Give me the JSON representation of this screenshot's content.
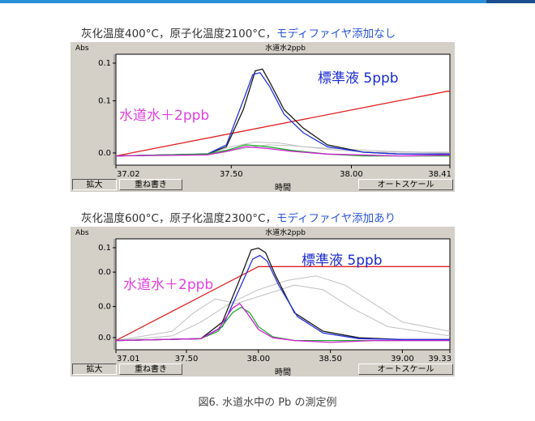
{
  "chart_data": [
    {
      "type": "line",
      "condition_prefix": "灰化温度400°C，原子化温度2100°C，",
      "condition_modifier": "モディファイヤ添加なし",
      "title": "水道水2ppb",
      "ylabel": "Abs",
      "xlabel": "時間",
      "x_ticks": [
        "37.02",
        "37.50",
        "38.00",
        "38.41"
      ],
      "y_ticks": [
        "0.1",
        "0.1",
        "0.0"
      ],
      "x_range": [
        37.02,
        38.41
      ],
      "y_range": [
        -0.01,
        0.11
      ],
      "annotation_standard": "標準液  5ppb",
      "annotation_sample": "水道水＋2ppb",
      "buttons": {
        "zoom": "拡大",
        "overlay": "重ね書き",
        "autoscale": "オートスケール"
      },
      "series": [
        {
          "name": "",
          "color": "#e02020",
          "x": [
            37.02,
            38.4,
            38.41
          ],
          "y": [
            0.0,
            0.07,
            0.07
          ]
        },
        {
          "name": "",
          "color": "#1a1a1a",
          "x": [
            37.02,
            37.4,
            37.48,
            37.55,
            37.6,
            37.63,
            37.66,
            37.72,
            37.8,
            37.9,
            38.05,
            38.2,
            38.41
          ],
          "y": [
            0.0,
            0.002,
            0.01,
            0.05,
            0.092,
            0.094,
            0.08,
            0.05,
            0.03,
            0.012,
            0.004,
            0.002,
            0.002
          ]
        },
        {
          "name": "",
          "color": "#2233dd",
          "x": [
            37.02,
            37.4,
            37.48,
            37.55,
            37.59,
            37.62,
            37.66,
            37.72,
            37.8,
            37.9,
            38.05,
            38.2,
            38.41
          ],
          "y": [
            0.0,
            0.002,
            0.012,
            0.06,
            0.088,
            0.09,
            0.075,
            0.045,
            0.025,
            0.01,
            0.004,
            0.002,
            0.002
          ]
        },
        {
          "name": "",
          "color": "#22aa33",
          "x": [
            37.02,
            37.4,
            37.48,
            37.56,
            37.65,
            37.75,
            37.9,
            38.05,
            38.2,
            38.41
          ],
          "y": [
            0.0,
            0.002,
            0.006,
            0.012,
            0.01,
            0.006,
            0.002,
            0.0,
            0.0,
            0.0
          ]
        },
        {
          "name": "",
          "color": "#d020d0",
          "x": [
            37.02,
            37.4,
            37.48,
            37.56,
            37.65,
            37.75,
            37.9,
            38.05,
            38.2,
            38.41
          ],
          "y": [
            0.0,
            0.001,
            0.005,
            0.01,
            0.008,
            0.005,
            0.002,
            0.001,
            0.0,
            0.001
          ]
        },
        {
          "name": "",
          "color": "#c0c0c0",
          "x": [
            37.02,
            37.4,
            37.5,
            37.6,
            37.7,
            37.8,
            37.95,
            38.1,
            38.25,
            38.41
          ],
          "y": [
            0.0,
            0.002,
            0.01,
            0.015,
            0.014,
            0.01,
            0.006,
            0.004,
            0.004,
            0.003
          ]
        },
        {
          "name": "",
          "color": "#c0c0c0",
          "x": [
            37.02,
            37.45,
            37.55,
            37.65,
            37.75,
            37.85,
            38.0,
            38.15,
            38.3,
            38.41
          ],
          "y": [
            0.0,
            0.003,
            0.008,
            0.012,
            0.011,
            0.009,
            0.007,
            0.005,
            0.004,
            0.004
          ]
        }
      ]
    },
    {
      "type": "line",
      "condition_prefix": "灰化温度600°C，原子化温度2300°C，",
      "condition_modifier": "モディファイヤ添加あり",
      "title": "水道水2ppb",
      "ylabel": "Abs",
      "xlabel": "時間",
      "x_ticks": [
        "37.01",
        "37.50",
        "38.00",
        "38.50",
        "39.00",
        "39.33"
      ],
      "y_ticks": [
        "0.1",
        "0.0",
        "0.0",
        "0.0"
      ],
      "x_range": [
        37.01,
        39.33
      ],
      "y_range": [
        -0.01,
        0.11
      ],
      "annotation_standard": "標準液  5ppb",
      "annotation_sample": "水道水＋2ppb",
      "buttons": {
        "zoom": "拡大",
        "overlay": "重ね書き",
        "autoscale": "オートスケール"
      },
      "series": [
        {
          "name": "",
          "color": "#e02020",
          "x": [
            37.01,
            38.0,
            39.33
          ],
          "y": [
            0.0,
            0.08,
            0.08
          ]
        },
        {
          "name": "",
          "color": "#1a1a1a",
          "x": [
            37.01,
            37.6,
            37.75,
            37.88,
            37.95,
            38.0,
            38.05,
            38.12,
            38.25,
            38.45,
            38.7,
            39.0,
            39.33
          ],
          "y": [
            0.0,
            0.002,
            0.02,
            0.07,
            0.098,
            0.1,
            0.095,
            0.07,
            0.03,
            0.01,
            0.003,
            0.001,
            0.001
          ]
        },
        {
          "name": "",
          "color": "#2233dd",
          "x": [
            37.01,
            37.6,
            37.75,
            37.88,
            37.96,
            38.01,
            38.06,
            38.14,
            38.27,
            38.45,
            38.7,
            39.0,
            39.33
          ],
          "y": [
            0.0,
            0.002,
            0.015,
            0.06,
            0.088,
            0.092,
            0.086,
            0.06,
            0.026,
            0.008,
            0.002,
            0.001,
            0.001
          ]
        },
        {
          "name": "",
          "color": "#22aa33",
          "x": [
            37.01,
            37.6,
            37.72,
            37.82,
            37.88,
            37.94,
            38.0,
            38.1,
            38.25,
            38.5,
            38.8,
            39.1,
            39.33
          ],
          "y": [
            0.0,
            0.002,
            0.01,
            0.03,
            0.036,
            0.03,
            0.015,
            0.004,
            0.0,
            0.0,
            0.0,
            0.0,
            0.0
          ]
        },
        {
          "name": "",
          "color": "#d020d0",
          "x": [
            37.01,
            37.6,
            37.72,
            37.82,
            37.87,
            37.92,
            38.0,
            38.1,
            38.25,
            38.5,
            38.8,
            39.1,
            39.33
          ],
          "y": [
            0.0,
            0.002,
            0.012,
            0.035,
            0.04,
            0.03,
            0.012,
            0.003,
            0.0,
            -0.002,
            0.0,
            0.0,
            0.0
          ]
        },
        {
          "name": "",
          "color": "#c0c0c0",
          "x": [
            37.01,
            37.4,
            37.6,
            37.8,
            38.0,
            38.2,
            38.4,
            38.6,
            38.8,
            39.0,
            39.33
          ],
          "y": [
            0.0,
            0.005,
            0.02,
            0.04,
            0.055,
            0.065,
            0.07,
            0.06,
            0.04,
            0.02,
            0.01
          ]
        },
        {
          "name": "",
          "color": "#c0c0c0",
          "x": [
            37.01,
            37.4,
            37.55,
            37.7,
            37.85,
            38.05,
            38.25,
            38.45,
            38.65,
            38.9,
            39.33
          ],
          "y": [
            0.0,
            0.01,
            0.03,
            0.045,
            0.04,
            0.05,
            0.06,
            0.055,
            0.035,
            0.015,
            0.005
          ]
        }
      ]
    }
  ],
  "figure_caption": "図6.   水道水中の Pb の測定例"
}
